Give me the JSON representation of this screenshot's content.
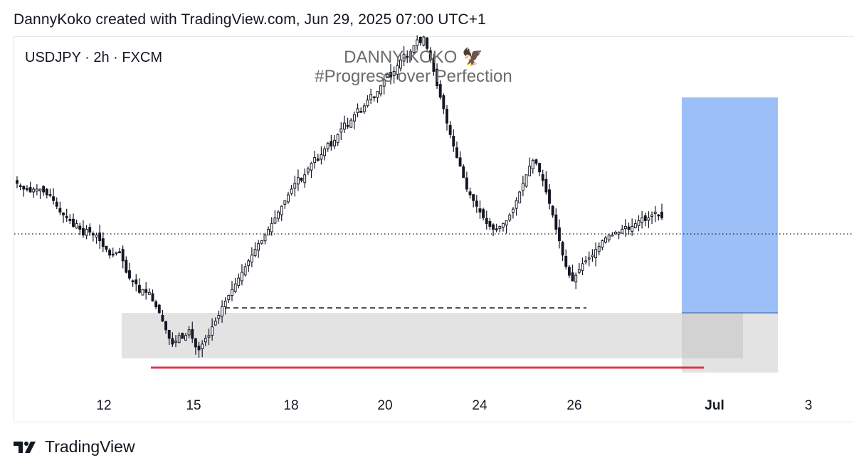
{
  "header": {
    "caption": "DannyKoko created with TradingView.com, Jun 29, 2025 07:00 UTC+1"
  },
  "symbol_label": "USDJPY · 2h · FXCM",
  "watermark": {
    "line1": "DANNY-KOKO 🦅",
    "line2": "#Progress over Perfection"
  },
  "footer": {
    "logo_icon": "tradingview-logo-icon",
    "brand": "TradingView"
  },
  "colors": {
    "candle": "#131722",
    "target_zone": "#9dbff7",
    "demand_zone": "#e3e3e3",
    "low_line": "#e0354f"
  },
  "chart_data": {
    "type": "candlestick",
    "symbol": "USDJPY",
    "timeframe": "2h",
    "x_ticks": [
      "12",
      "15",
      "18",
      "20",
      "24",
      "26",
      "Jul",
      "3"
    ],
    "price_path_closes": [
      0.49,
      0.48,
      0.47,
      0.47,
      0.46,
      0.47,
      0.47,
      0.47,
      0.46,
      0.45,
      0.45,
      0.43,
      0.41,
      0.39,
      0.38,
      0.37,
      0.36,
      0.34,
      0.35,
      0.33,
      0.31,
      0.33,
      0.32,
      0.31,
      0.31,
      0.29,
      0.27,
      0.26,
      0.24,
      0.24,
      0.25,
      0.25,
      0.22,
      0.18,
      0.16,
      0.15,
      0.14,
      0.11,
      0.12,
      0.11,
      0.11,
      0.08,
      0.06,
      0.04,
      0.01,
      -0.02,
      -0.05,
      -0.07,
      -0.06,
      -0.04,
      -0.05,
      -0.04,
      -0.02,
      -0.05,
      -0.08,
      -0.09,
      -0.07,
      -0.05,
      -0.04,
      -0.01,
      0.01,
      0.03,
      0.06,
      0.08,
      0.1,
      0.12,
      0.14,
      0.16,
      0.18,
      0.2,
      0.22,
      0.24,
      0.26,
      0.28,
      0.29,
      0.31,
      0.33,
      0.35,
      0.37,
      0.39,
      0.41,
      0.43,
      0.45,
      0.47,
      0.49,
      0.51,
      0.5,
      0.52,
      0.54,
      0.56,
      0.58,
      0.57,
      0.59,
      0.61,
      0.63,
      0.62,
      0.64,
      0.66,
      0.68,
      0.7,
      0.69,
      0.71,
      0.73,
      0.75,
      0.74,
      0.76,
      0.78,
      0.8,
      0.79,
      0.81,
      0.83,
      0.85,
      0.87,
      0.86,
      0.88,
      0.9,
      0.92,
      0.94,
      0.93,
      0.95,
      0.97,
      0.99,
      0.98,
      1.0,
      0.96,
      0.92,
      0.88,
      0.83,
      0.79,
      0.75,
      0.7,
      0.66,
      0.62,
      0.58,
      0.55,
      0.51,
      0.47,
      0.45,
      0.43,
      0.41,
      0.39,
      0.37,
      0.35,
      0.34,
      0.33,
      0.33,
      0.34,
      0.35,
      0.36,
      0.38,
      0.4,
      0.43,
      0.46,
      0.49,
      0.52,
      0.55,
      0.57,
      0.56,
      0.53,
      0.5,
      0.46,
      0.42,
      0.38,
      0.33,
      0.29,
      0.24,
      0.2,
      0.17,
      0.15,
      0.17,
      0.19,
      0.21,
      0.22,
      0.23,
      0.24,
      0.26,
      0.27,
      0.29,
      0.3,
      0.31,
      0.31,
      0.32,
      0.32,
      0.33,
      0.34,
      0.33,
      0.34,
      0.35,
      0.36,
      0.37,
      0.36,
      0.37,
      0.38,
      0.39,
      0.38,
      0.37
    ],
    "annotations": [
      {
        "type": "rectangle",
        "name": "target-zone",
        "color": "#9dbff7"
      },
      {
        "type": "rectangle",
        "name": "demand-zone",
        "color": "#e3e3e3"
      },
      {
        "type": "horizontal-line",
        "name": "recent-low-line",
        "style": "solid",
        "color": "#e0354f"
      },
      {
        "type": "horizontal-line",
        "name": "equal-lows-line",
        "style": "dashed"
      },
      {
        "type": "horizontal-line",
        "name": "last-price-line",
        "style": "dotted"
      }
    ],
    "grid": false,
    "price_axis_visible": false
  }
}
